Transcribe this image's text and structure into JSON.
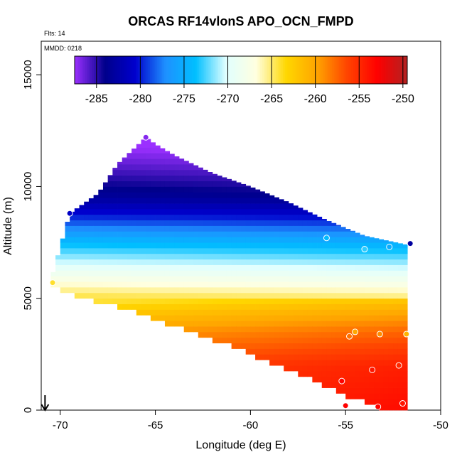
{
  "chart_data": {
    "type": "heatmap",
    "title": "ORCAS RF14vlonS APO_OCN_FMPD",
    "annotations": [
      "Flts: 14",
      "MMDD: 0218"
    ],
    "xlabel": "Longitude (deg E)",
    "ylabel": "Altitude (m)",
    "xlim": [
      -71,
      -50
    ],
    "ylim": [
      0,
      16500
    ],
    "x_ticks": [
      -70,
      -65,
      -60,
      -55,
      -50
    ],
    "y_ticks": [
      0,
      5000,
      10000,
      15000
    ],
    "colorbar": {
      "ticks": [
        -285,
        -280,
        -275,
        -270,
        -265,
        -260,
        -255,
        -250
      ],
      "range": [
        -287.5,
        -249.5
      ],
      "colors": [
        "#9b30ff",
        "#00008b",
        "#0000cd",
        "#1e90ff",
        "#00bfff",
        "#e0ffff",
        "#ffffe0",
        "#ffd700",
        "#ffa500",
        "#ff4500",
        "#ff0000",
        "#b22222"
      ]
    },
    "surface": {
      "description_top_boundary_alt_m": [
        [
          -70.5,
          5800
        ],
        [
          -69.5,
          8800
        ],
        [
          -68,
          9700
        ],
        [
          -67,
          11000
        ],
        [
          -66,
          11800
        ],
        [
          -65.5,
          12200
        ],
        [
          -65,
          11900
        ],
        [
          -64,
          11400
        ],
        [
          -62,
          10600
        ],
        [
          -60,
          10000
        ],
        [
          -58,
          9300
        ],
        [
          -56,
          8500
        ],
        [
          -54,
          7800
        ],
        [
          -51.8,
          7400
        ]
      ],
      "bottom_boundary_alt_m": [
        [
          -70.5,
          5700
        ],
        [
          -69,
          5200
        ],
        [
          -67,
          4800
        ],
        [
          -65,
          4200
        ],
        [
          -63,
          3600
        ],
        [
          -61,
          3000
        ],
        [
          -59,
          2300
        ],
        [
          -57,
          1600
        ],
        [
          -55,
          800
        ],
        [
          -53,
          200
        ],
        [
          -51.8,
          200
        ]
      ],
      "value_at_alt": [
        [
          0,
          -255
        ],
        [
          2000,
          -256
        ],
        [
          3500,
          -259
        ],
        [
          4500,
          -262
        ],
        [
          5500,
          -266
        ],
        [
          6500,
          -270
        ],
        [
          7500,
          -274
        ],
        [
          8500,
          -279
        ],
        [
          9500,
          -283
        ],
        [
          11000,
          -286
        ],
        [
          12200,
          -288
        ]
      ]
    },
    "observations": [
      {
        "lon": -70.4,
        "alt": 5700,
        "value": -264
      },
      {
        "lon": -69.5,
        "alt": 8800,
        "value": -281
      },
      {
        "lon": -65.5,
        "alt": 12200,
        "value": -287
      },
      {
        "lon": -56,
        "alt": 7700,
        "value": -274
      },
      {
        "lon": -54,
        "alt": 7200,
        "value": -273
      },
      {
        "lon": -52.7,
        "alt": 7300,
        "value": -275
      },
      {
        "lon": -51.6,
        "alt": 7450,
        "value": -283
      },
      {
        "lon": -54.5,
        "alt": 3500,
        "value": -260
      },
      {
        "lon": -54.8,
        "alt": 3300,
        "value": -258
      },
      {
        "lon": -53.2,
        "alt": 3400,
        "value": -259
      },
      {
        "lon": -51.8,
        "alt": 3400,
        "value": -261
      },
      {
        "lon": -55.2,
        "alt": 1300,
        "value": -253
      },
      {
        "lon": -53.6,
        "alt": 1800,
        "value": -254
      },
      {
        "lon": -52.2,
        "alt": 2000,
        "value": -255
      },
      {
        "lon": -55,
        "alt": 200,
        "value": -253
      },
      {
        "lon": -53.3,
        "alt": 150,
        "value": -253
      },
      {
        "lon": -52,
        "alt": 300,
        "value": -254
      }
    ],
    "arrow": {
      "lon": -70.8,
      "direction": "down"
    }
  }
}
